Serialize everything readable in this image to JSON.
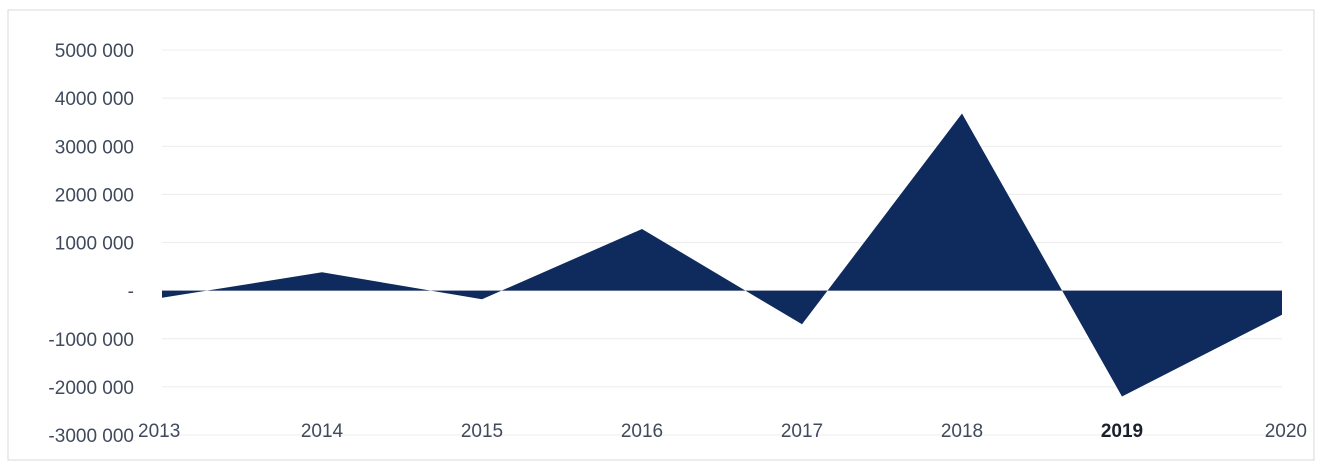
{
  "chart_data": {
    "type": "area",
    "x": [
      "2013",
      "2014",
      "2015",
      "2016",
      "2017",
      "2018",
      "2019",
      "2020"
    ],
    "series": [
      {
        "values": [
          -150000,
          380000,
          -180000,
          1280000,
          -700000,
          3680000,
          -2200000,
          -500000
        ]
      }
    ],
    "y_tick_labels": [
      "5000 000",
      "4000 000",
      "3000 000",
      "2000 000",
      "1000 000",
      "-",
      "-1000 000",
      "-2000 000",
      "-3000 000"
    ],
    "y_ticks": [
      5000000,
      4000000,
      3000000,
      2000000,
      1000000,
      0,
      -1000000,
      -2000000,
      -3000000
    ],
    "ylim": [
      -3000000,
      5000000
    ],
    "title": "",
    "xlabel": "",
    "ylabel": "",
    "grid": true,
    "fill_color": "#0f2a5c",
    "highlighted_x_label": "2019"
  }
}
